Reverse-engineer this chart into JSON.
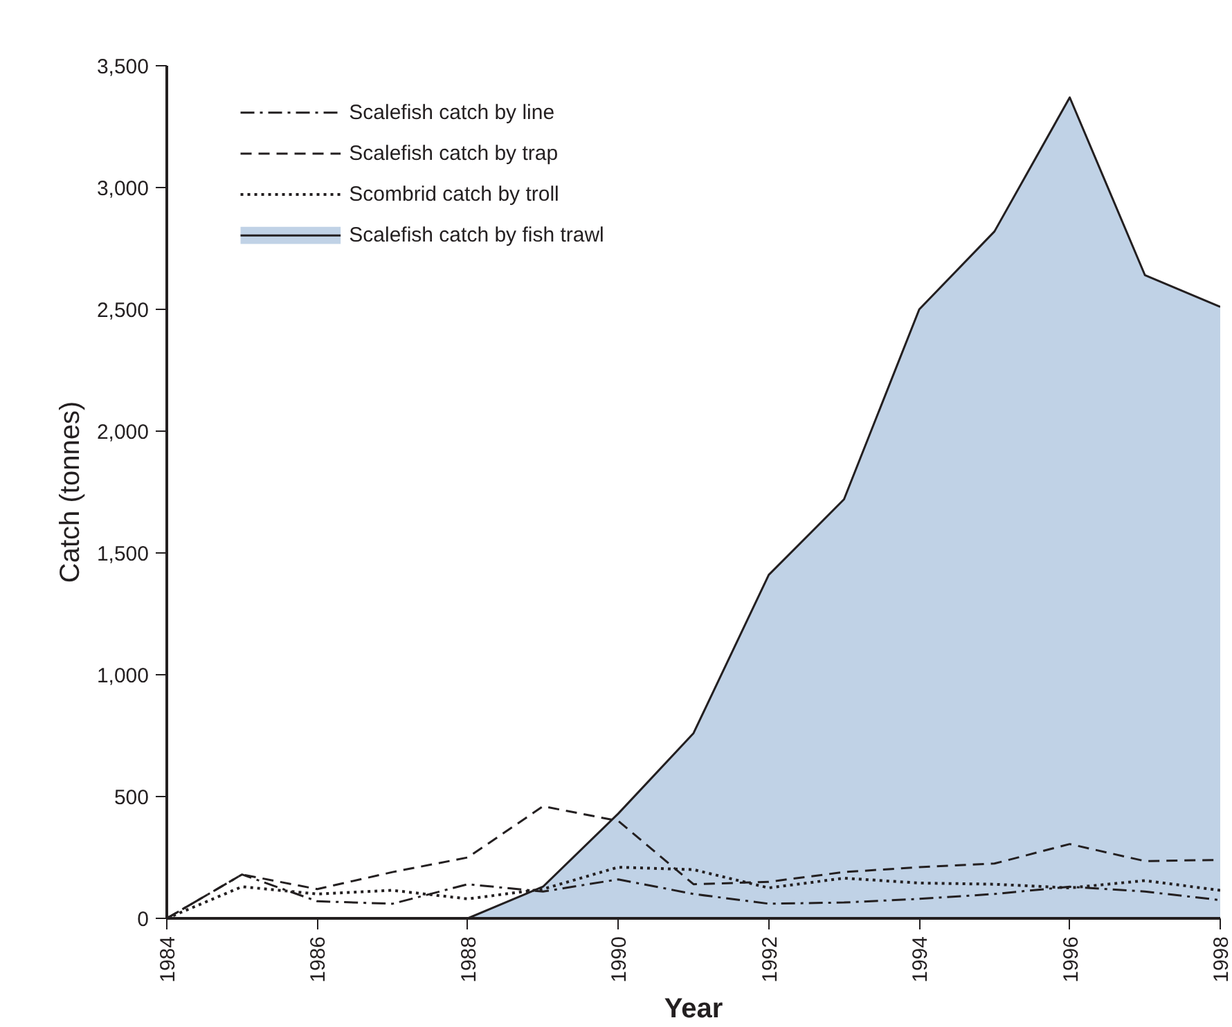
{
  "chart_data": {
    "type": "line",
    "xlabel": "Year",
    "ylabel": "Catch (tonnes)",
    "x": [
      1984,
      1985,
      1986,
      1987,
      1988,
      1989,
      1990,
      1991,
      1992,
      1993,
      1994,
      1995,
      1996,
      1997,
      1998
    ],
    "series": [
      {
        "name": "Scalefish catch by line",
        "color": "#231f20",
        "line_style": "dashdot",
        "values": [
          0,
          180,
          70,
          60,
          140,
          110,
          160,
          100,
          60,
          65,
          80,
          100,
          130,
          110,
          75
        ]
      },
      {
        "name": "Scalefish catch by trap",
        "color": "#231f20",
        "line_style": "dashed",
        "values": [
          0,
          180,
          120,
          190,
          250,
          460,
          400,
          140,
          150,
          190,
          210,
          225,
          305,
          235,
          240
        ]
      },
      {
        "name": "Scombrid catch by troll",
        "color": "#231f20",
        "line_style": "dotted",
        "values": [
          0,
          130,
          100,
          115,
          80,
          120,
          210,
          200,
          125,
          165,
          145,
          140,
          125,
          155,
          115
        ]
      },
      {
        "name": "Scalefish catch by fish trawl",
        "type": "area",
        "color": "#c0d2e6",
        "line_style": "solid",
        "values": [
          0,
          0,
          0,
          0,
          0,
          130,
          430,
          760,
          1410,
          1720,
          2500,
          2820,
          3370,
          2640,
          2510
        ]
      }
    ],
    "xlim": [
      1984,
      1998
    ],
    "xticks": [
      1984,
      1986,
      1988,
      1990,
      1992,
      1994,
      1996,
      1998
    ],
    "ylim": [
      0,
      3500
    ],
    "yticks": [
      0,
      500,
      {
        "value": 1000,
        "label": "1,000"
      },
      {
        "value": 1500,
        "label": "1,500"
      },
      {
        "value": 2000,
        "label": "2,000"
      },
      {
        "value": 2500,
        "label": "2,500"
      },
      {
        "value": 3000,
        "label": "3,000"
      },
      {
        "value": 3500,
        "label": "3,500"
      }
    ],
    "grid": false,
    "legend": "top left"
  }
}
